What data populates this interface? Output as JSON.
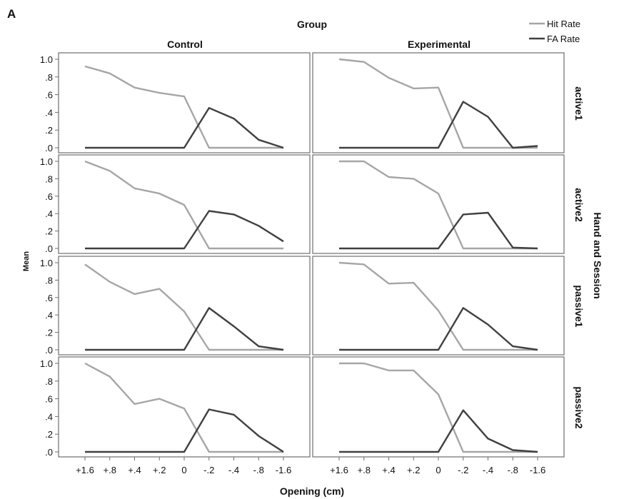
{
  "panel_letter": "A",
  "colors": {
    "hit": "#a6a6a6",
    "fa": "#404040",
    "frame": "#6e6e6e"
  },
  "legend": {
    "hit_label": "Hit Rate",
    "fa_label": "FA Rate"
  },
  "chart_data": {
    "type": "line",
    "title": "Group",
    "xlabel": "Opening (cm)",
    "ylabel": "Mean",
    "row_group_label": "Hand and Session",
    "columns": [
      "Control",
      "Experimental"
    ],
    "rows": [
      "active1",
      "active2",
      "passive1",
      "passive2"
    ],
    "categories": [
      "+1.6",
      "+.8",
      "+.4",
      "+.2",
      "0",
      "-.2",
      "-.4",
      "-.8",
      "-1.6"
    ],
    "ylim": [
      0,
      1.0
    ],
    "y_ticks": [
      {
        "value": 0.0,
        "label": ".0"
      },
      {
        "value": 0.2,
        "label": ".2"
      },
      {
        "value": 0.4,
        "label": ".4"
      },
      {
        "value": 0.6,
        "label": ".6"
      },
      {
        "value": 0.8,
        "label": ".8"
      },
      {
        "value": 1.0,
        "label": "1.0"
      }
    ],
    "grid": false,
    "legend_position": "top-right",
    "panels": [
      {
        "row": "active1",
        "column": "Control",
        "series": [
          {
            "name": "Hit Rate",
            "values": [
              0.92,
              0.84,
              0.68,
              0.62,
              0.58,
              0.0,
              0.0,
              0.0,
              0.0
            ]
          },
          {
            "name": "FA Rate",
            "values": [
              0.0,
              0.0,
              0.0,
              0.0,
              0.0,
              0.45,
              0.33,
              0.09,
              0.0
            ]
          }
        ]
      },
      {
        "row": "active1",
        "column": "Experimental",
        "series": [
          {
            "name": "Hit Rate",
            "values": [
              1.0,
              0.97,
              0.79,
              0.67,
              0.68,
              0.0,
              0.0,
              0.0,
              0.0
            ]
          },
          {
            "name": "FA Rate",
            "values": [
              0.0,
              0.0,
              0.0,
              0.0,
              0.0,
              0.52,
              0.35,
              0.0,
              0.02
            ]
          }
        ]
      },
      {
        "row": "active2",
        "column": "Control",
        "series": [
          {
            "name": "Hit Rate",
            "values": [
              1.0,
              0.89,
              0.69,
              0.63,
              0.5,
              0.0,
              0.0,
              0.0,
              0.0
            ]
          },
          {
            "name": "FA Rate",
            "values": [
              0.0,
              0.0,
              0.0,
              0.0,
              0.0,
              0.43,
              0.39,
              0.26,
              0.08
            ]
          }
        ]
      },
      {
        "row": "active2",
        "column": "Experimental",
        "series": [
          {
            "name": "Hit Rate",
            "values": [
              1.0,
              1.0,
              0.82,
              0.8,
              0.63,
              0.0,
              0.0,
              0.0,
              0.0
            ]
          },
          {
            "name": "FA Rate",
            "values": [
              0.0,
              0.0,
              0.0,
              0.0,
              0.0,
              0.39,
              0.41,
              0.01,
              0.0
            ]
          }
        ]
      },
      {
        "row": "passive1",
        "column": "Control",
        "series": [
          {
            "name": "Hit Rate",
            "values": [
              0.98,
              0.78,
              0.64,
              0.7,
              0.44,
              0.0,
              0.0,
              0.0,
              0.0
            ]
          },
          {
            "name": "FA Rate",
            "values": [
              0.0,
              0.0,
              0.0,
              0.0,
              0.0,
              0.48,
              0.27,
              0.04,
              0.0
            ]
          }
        ]
      },
      {
        "row": "passive1",
        "column": "Experimental",
        "series": [
          {
            "name": "Hit Rate",
            "values": [
              1.0,
              0.98,
              0.76,
              0.77,
              0.45,
              0.0,
              0.0,
              0.0,
              0.0
            ]
          },
          {
            "name": "FA Rate",
            "values": [
              0.0,
              0.0,
              0.0,
              0.0,
              0.0,
              0.48,
              0.29,
              0.04,
              0.0
            ]
          }
        ]
      },
      {
        "row": "passive2",
        "column": "Control",
        "series": [
          {
            "name": "Hit Rate",
            "values": [
              1.0,
              0.85,
              0.54,
              0.6,
              0.49,
              0.0,
              0.0,
              0.0,
              0.0
            ]
          },
          {
            "name": "FA Rate",
            "values": [
              0.0,
              0.0,
              0.0,
              0.0,
              0.0,
              0.48,
              0.42,
              0.18,
              0.0
            ]
          }
        ]
      },
      {
        "row": "passive2",
        "column": "Experimental",
        "series": [
          {
            "name": "Hit Rate",
            "values": [
              1.0,
              1.0,
              0.92,
              0.92,
              0.65,
              0.0,
              0.0,
              0.0,
              0.0
            ]
          },
          {
            "name": "FA Rate",
            "values": [
              0.0,
              0.0,
              0.0,
              0.0,
              0.0,
              0.47,
              0.15,
              0.02,
              0.0
            ]
          }
        ]
      }
    ]
  }
}
